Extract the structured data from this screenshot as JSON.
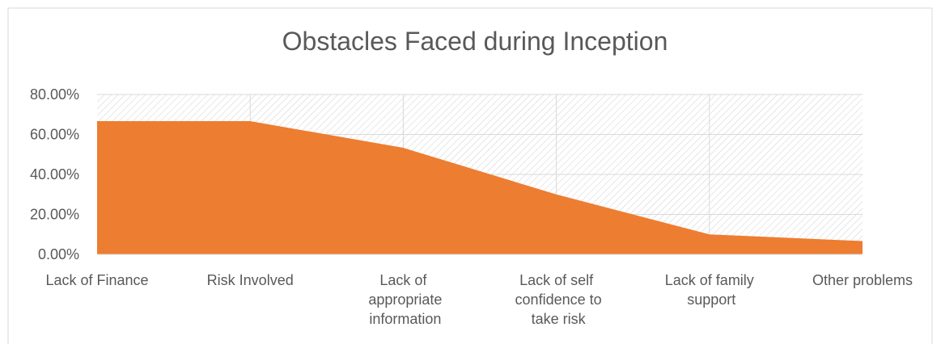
{
  "chart_data": {
    "type": "area",
    "title": "Obstacles Faced during Inception",
    "categories": [
      "Lack of Finance",
      "Risk Involved",
      "Lack of appropriate information",
      "Lack of self confidence to take risk",
      "Lack of family support",
      "Other problems"
    ],
    "values": [
      66.67,
      66.67,
      53.33,
      30,
      10,
      6.67
    ],
    "color": "#ed7d31",
    "ylim": [
      0,
      80
    ],
    "yticks": [
      {
        "value": 0,
        "label": "0.00%"
      },
      {
        "value": 20,
        "label": "20.00%"
      },
      {
        "value": 40,
        "label": "40.00%"
      },
      {
        "value": 60,
        "label": "60.00%"
      },
      {
        "value": 80,
        "label": "80.00%"
      }
    ],
    "grid": true
  }
}
